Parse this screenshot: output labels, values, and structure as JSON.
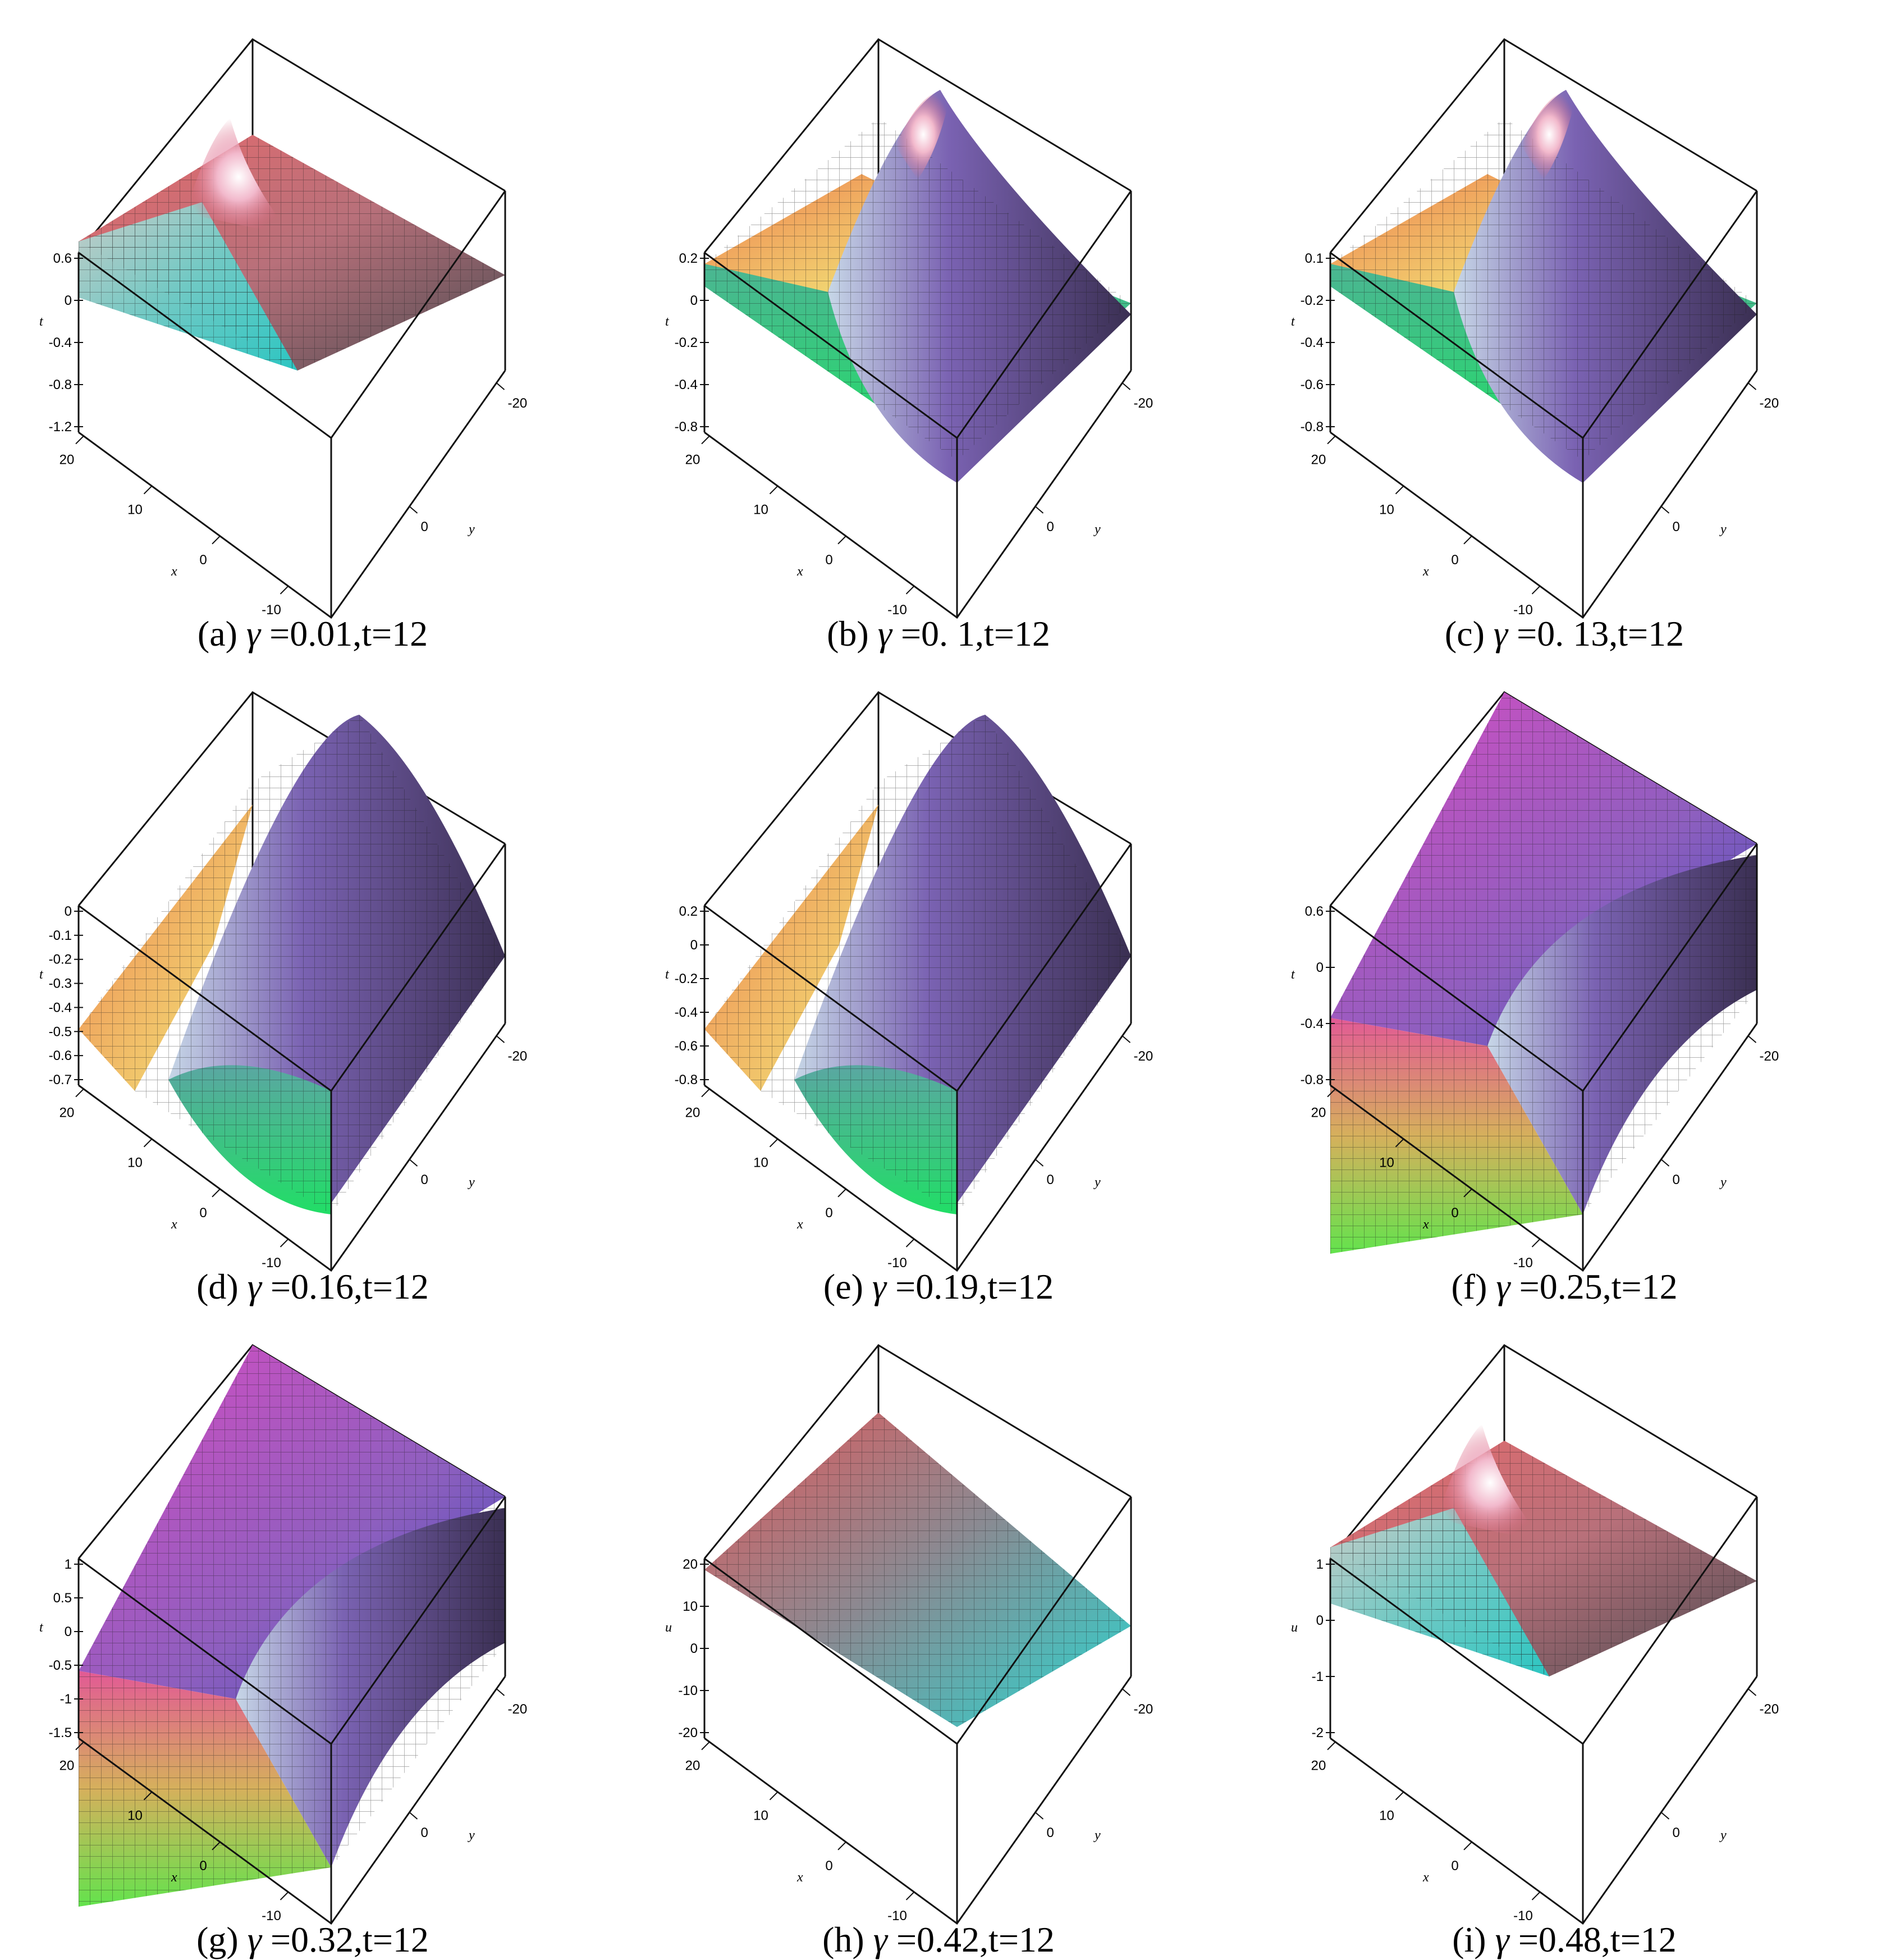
{
  "panels": [
    {
      "label": "(a)",
      "param": "0.01",
      "time": "t=12",
      "zlabel": "t",
      "zticks": [
        "0.6",
        "0",
        "-0.4",
        "-0.8",
        "-1.2"
      ],
      "xticks": [
        "20",
        "10",
        "0",
        "-10"
      ],
      "yticks": [
        "-20",
        "0"
      ],
      "xlabel": "x",
      "ylabel": "y",
      "surface": "hump-corner"
    },
    {
      "label": "(b)",
      "param": "0. 1",
      "time": "t=12",
      "zlabel": "t",
      "zticks": [
        "0.2",
        "0",
        "-0.2",
        "-0.4",
        "-0.8"
      ],
      "xticks": [
        "20",
        "10",
        "0",
        "-10"
      ],
      "yticks": [
        "-20",
        "0"
      ],
      "xlabel": "x",
      "ylabel": "y",
      "surface": "hump-valley"
    },
    {
      "label": "(c)",
      "param": "0. 13",
      "time": "t=12",
      "zlabel": "t",
      "zticks": [
        "0.1",
        "-0.2",
        "-0.4",
        "-0.6",
        "-0.8"
      ],
      "xticks": [
        "20",
        "10",
        "0",
        "-10"
      ],
      "yticks": [
        "-20",
        "0"
      ],
      "xlabel": "x",
      "ylabel": "y",
      "surface": "hump-valley"
    },
    {
      "label": "(d)",
      "param": "0.16",
      "time": "t=12",
      "zlabel": "t",
      "zticks": [
        "0",
        "-0.1",
        "-0.2",
        "-0.3",
        "-0.4",
        "-0.5",
        "-0.6",
        "-0.7"
      ],
      "xticks": [
        "20",
        "10",
        "0",
        "-10"
      ],
      "yticks": [
        "-20",
        "0"
      ],
      "xlabel": "x",
      "ylabel": "y",
      "surface": "ridge"
    },
    {
      "label": "(e)",
      "param": "0.19",
      "time": "t=12",
      "zlabel": "t",
      "zticks": [
        "0.2",
        "0",
        "-0.2",
        "-0.4",
        "-0.6",
        "-0.8"
      ],
      "xticks": [
        "20",
        "10",
        "0",
        "-10"
      ],
      "yticks": [
        "-20",
        "0"
      ],
      "xlabel": "x",
      "ylabel": "y",
      "surface": "ridge"
    },
    {
      "label": "(f)",
      "param": "0.25",
      "time": "t=12",
      "zlabel": "t",
      "zticks": [
        "0.6",
        "0",
        "-0.4",
        "-0.8"
      ],
      "xticks": [
        "20",
        "10",
        "0",
        "-10"
      ],
      "yticks": [
        "-20",
        "0"
      ],
      "xlabel": "x",
      "ylabel": "y",
      "surface": "kink"
    },
    {
      "label": "(g)",
      "param": "0.32",
      "time": "t=12",
      "zlabel": "t",
      "zticks": [
        "1",
        "0.5",
        "0",
        "-0.5",
        "-1",
        "-1.5"
      ],
      "xticks": [
        "20",
        "10",
        "0",
        "-10"
      ],
      "yticks": [
        "-20",
        "0"
      ],
      "xlabel": "x",
      "ylabel": "y",
      "surface": "kink"
    },
    {
      "label": "(h)",
      "param": "0.42",
      "time": "t=12",
      "zlabel": "u",
      "zticks": [
        "20",
        "10",
        "0",
        "-10",
        "-20"
      ],
      "xticks": [
        "20",
        "10",
        "0",
        "-10"
      ],
      "yticks": [
        "-20",
        "0"
      ],
      "xlabel": "x",
      "ylabel": "y",
      "surface": "plane"
    },
    {
      "label": "(i)",
      "param": "0.48",
      "time": "t=12",
      "zlabel": "u",
      "zticks": [
        "1",
        "0",
        "-1",
        "-2"
      ],
      "xticks": [
        "20",
        "10",
        "0",
        "-10"
      ],
      "yticks": [
        "-20",
        "0"
      ],
      "xlabel": "x",
      "ylabel": "y",
      "surface": "hump-corner"
    }
  ],
  "caption": {
    "symbol": "γ",
    "equals": " ="
  },
  "colors": {
    "red": "#e0474a",
    "pink": "#ee6aa7",
    "magenta": "#c839c8",
    "yellow": "#f3f07a",
    "cyan": "#38d6d0",
    "green": "#25e36a",
    "purple": "#5b3d8a",
    "blue": "#2a3aa8",
    "dark": "#3b3b3b"
  }
}
